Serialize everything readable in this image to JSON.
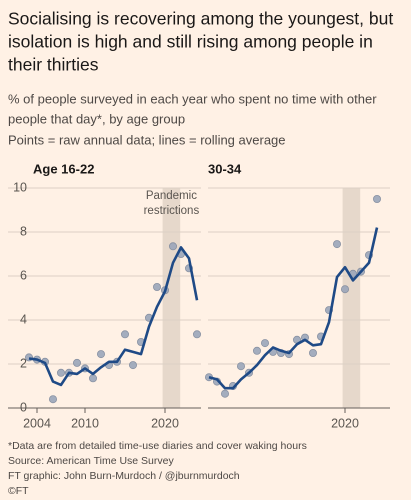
{
  "title": "Socialising is recovering among the youngest, but isolation is high and still rising among people in their thirties",
  "subtitle": "% of people surveyed in each year who spent no time with other people that day*, by age group",
  "legend_note": "Points = raw annual data; lines = rolling average",
  "footer": [
    "*Data are from detailed time-use diaries and cover waking hours",
    "Source: American Time Use Survey",
    "FT graphic: John Burn-Murdoch / @jburnmurdoch",
    "©FT"
  ],
  "chart_data": [
    {
      "type": "line",
      "title": "Age 16-22",
      "x": [
        2003,
        2004,
        2005,
        2006,
        2007,
        2008,
        2009,
        2010,
        2011,
        2012,
        2013,
        2014,
        2015,
        2016,
        2017,
        2018,
        2019,
        2020,
        2021,
        2022,
        2023,
        2024
      ],
      "series": [
        {
          "style": "points",
          "color": "#9ba6ba",
          "values": [
            2.3,
            2.2,
            2.1,
            0.4,
            1.6,
            1.6,
            2.05,
            1.8,
            1.35,
            2.45,
            1.95,
            2.1,
            3.35,
            1.95,
            3.0,
            4.1,
            5.5,
            5.35,
            7.35,
            7.0,
            6.35,
            3.35
          ]
        },
        {
          "style": "line",
          "color": "#1f4a86",
          "values": [
            2.25,
            2.2,
            2.05,
            1.2,
            1.05,
            1.6,
            1.55,
            1.8,
            1.55,
            1.85,
            2.1,
            2.1,
            2.65,
            2.55,
            2.45,
            3.7,
            4.6,
            5.3,
            6.6,
            7.3,
            6.8,
            4.9
          ]
        }
      ],
      "xlim": [
        2002.5,
        2024.5
      ],
      "xticks": [
        2004,
        2010,
        2020
      ],
      "ylim": [
        0,
        10
      ],
      "yticks": [
        0,
        2,
        4,
        6,
        8,
        10
      ],
      "ytick_labels": true,
      "grid": true,
      "highlight_range": [
        2019.7,
        2021.9
      ],
      "annotation": [
        "Pandemic",
        "restrictions"
      ]
    },
    {
      "type": "line",
      "title": "30-34",
      "x": [
        2003,
        2004,
        2005,
        2006,
        2007,
        2008,
        2009,
        2010,
        2011,
        2012,
        2013,
        2014,
        2015,
        2016,
        2017,
        2018,
        2019,
        2020,
        2021,
        2022,
        2023,
        2024
      ],
      "series": [
        {
          "style": "points",
          "color": "#9ba6ba",
          "values": [
            1.4,
            1.2,
            0.65,
            1.0,
            1.9,
            1.6,
            2.6,
            2.95,
            2.55,
            2.5,
            2.45,
            3.1,
            3.2,
            2.5,
            3.25,
            4.45,
            7.45,
            5.4,
            6.1,
            6.2,
            6.95,
            9.5
          ]
        },
        {
          "style": "line",
          "color": "#1f4a86",
          "values": [
            1.4,
            1.3,
            0.9,
            0.9,
            1.3,
            1.6,
            1.95,
            2.4,
            2.75,
            2.6,
            2.5,
            2.9,
            3.1,
            2.85,
            2.9,
            3.9,
            5.95,
            6.4,
            5.8,
            6.2,
            6.6,
            8.2
          ]
        }
      ],
      "xlim": [
        2002.5,
        2024.5
      ],
      "xticks": [
        2020
      ],
      "ylim": [
        0,
        10
      ],
      "yticks": [
        0,
        2,
        4,
        6,
        8,
        10
      ],
      "ytick_labels": false,
      "grid": true,
      "highlight_range": [
        2019.7,
        2021.9
      ]
    }
  ]
}
